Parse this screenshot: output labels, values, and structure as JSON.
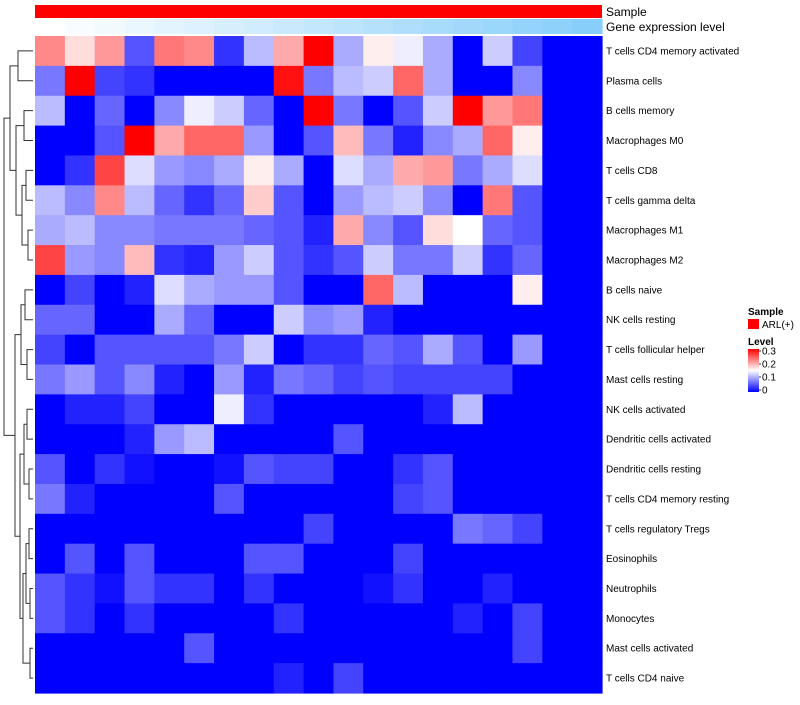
{
  "chart_data": {
    "type": "heatmap",
    "title": "",
    "annotation_rows": [
      {
        "name": "Sample",
        "kind": "categorical",
        "colors": [
          "#ff0000"
        ]
      },
      {
        "name": "Gene expression level",
        "kind": "gradient",
        "colors": [
          "#ffffff",
          "#87cefa"
        ]
      }
    ],
    "rows": [
      "T cells CD4 memory activated",
      "Plasma cells",
      "B cells memory",
      "Macrophages M0",
      "T cells CD8",
      "T cells gamma delta",
      "Macrophages M1",
      "Macrophages M2",
      "B cells naive",
      "NK cells resting",
      "T cells follicular helper",
      "Mast cells resting",
      "NK cells activated",
      "Dendritic cells activated",
      "Dendritic cells resting",
      "T cells CD4 memory resting",
      "T cells regulatory  Tregs",
      "Eosinophils",
      "Neutrophils",
      "Monocytes",
      "Mast cells activated",
      "T cells CD4 naive"
    ],
    "n_columns": 19,
    "values": [
      [
        0.22,
        0.17,
        0.21,
        0.05,
        0.23,
        0.22,
        0.03,
        0.11,
        0.2,
        0.3,
        0.1,
        0.16,
        0.14,
        0.1,
        0.0,
        0.12,
        0.04,
        0.0,
        0.0
      ],
      [
        0.07,
        0.3,
        0.04,
        0.03,
        0.0,
        0.0,
        0.0,
        0.0,
        0.29,
        0.07,
        0.11,
        0.12,
        0.24,
        0.1,
        0.0,
        0.0,
        0.08,
        0.0,
        0.0
      ],
      [
        0.11,
        0.0,
        0.06,
        0.0,
        0.08,
        0.14,
        0.12,
        0.06,
        0.0,
        0.3,
        0.07,
        0.0,
        0.05,
        0.12,
        0.3,
        0.21,
        0.23,
        0.0,
        0.0
      ],
      [
        0.0,
        0.0,
        0.05,
        0.3,
        0.2,
        0.24,
        0.24,
        0.09,
        0.0,
        0.05,
        0.19,
        0.07,
        0.02,
        0.08,
        0.1,
        0.24,
        0.16,
        0.0,
        0.0
      ],
      [
        0.0,
        0.03,
        0.26,
        0.13,
        0.09,
        0.08,
        0.1,
        0.16,
        0.1,
        0.0,
        0.13,
        0.1,
        0.2,
        0.21,
        0.07,
        0.1,
        0.13,
        0.0,
        0.0
      ],
      [
        0.11,
        0.08,
        0.22,
        0.11,
        0.06,
        0.03,
        0.06,
        0.18,
        0.05,
        0.0,
        0.09,
        0.11,
        0.12,
        0.08,
        0.0,
        0.23,
        0.05,
        0.0,
        0.0
      ],
      [
        0.1,
        0.11,
        0.08,
        0.08,
        0.07,
        0.07,
        0.07,
        0.06,
        0.05,
        0.02,
        0.2,
        0.08,
        0.05,
        0.17,
        0.15,
        0.06,
        0.05,
        0.0,
        0.0
      ],
      [
        0.26,
        0.09,
        0.08,
        0.19,
        0.03,
        0.02,
        0.09,
        0.12,
        0.05,
        0.03,
        0.05,
        0.12,
        0.07,
        0.07,
        0.12,
        0.03,
        0.06,
        0.0,
        0.0
      ],
      [
        0.0,
        0.04,
        0.0,
        0.02,
        0.13,
        0.1,
        0.09,
        0.09,
        0.05,
        0.0,
        0.0,
        0.24,
        0.11,
        0.0,
        0.0,
        0.0,
        0.16,
        0.0,
        0.0
      ],
      [
        0.06,
        0.06,
        0.0,
        0.0,
        0.1,
        0.06,
        0.0,
        0.0,
        0.12,
        0.08,
        0.09,
        0.02,
        0.0,
        0.0,
        0.0,
        0.0,
        0.0,
        0.0,
        0.0
      ],
      [
        0.04,
        0.0,
        0.05,
        0.05,
        0.05,
        0.05,
        0.07,
        0.12,
        0.0,
        0.03,
        0.03,
        0.06,
        0.05,
        0.1,
        0.05,
        0.0,
        0.09,
        0.0,
        0.0
      ],
      [
        0.07,
        0.09,
        0.05,
        0.08,
        0.02,
        0.0,
        0.09,
        0.02,
        0.07,
        0.06,
        0.04,
        0.05,
        0.04,
        0.04,
        0.04,
        0.04,
        0.0,
        0.0,
        0.0
      ],
      [
        0.0,
        0.02,
        0.02,
        0.04,
        0.0,
        0.0,
        0.14,
        0.03,
        0.0,
        0.0,
        0.0,
        0.0,
        0.0,
        0.02,
        0.11,
        0.0,
        0.0,
        0.0,
        0.0
      ],
      [
        0.0,
        0.0,
        0.0,
        0.02,
        0.09,
        0.11,
        0.0,
        0.0,
        0.0,
        0.0,
        0.05,
        0.0,
        0.0,
        0.0,
        0.0,
        0.0,
        0.0,
        0.0,
        0.0
      ],
      [
        0.05,
        0.0,
        0.03,
        0.01,
        0.0,
        0.0,
        0.01,
        0.05,
        0.04,
        0.04,
        0.0,
        0.0,
        0.03,
        0.05,
        0.0,
        0.0,
        0.0,
        0.0,
        0.0
      ],
      [
        0.07,
        0.02,
        0.0,
        0.0,
        0.0,
        0.0,
        0.05,
        0.0,
        0.0,
        0.0,
        0.0,
        0.0,
        0.04,
        0.05,
        0.0,
        0.0,
        0.0,
        0.0,
        0.0
      ],
      [
        0.0,
        0.0,
        0.0,
        0.0,
        0.0,
        0.0,
        0.0,
        0.0,
        0.0,
        0.04,
        0.0,
        0.0,
        0.0,
        0.0,
        0.07,
        0.06,
        0.04,
        0.0,
        0.0
      ],
      [
        0.0,
        0.05,
        0.0,
        0.05,
        0.0,
        0.0,
        0.0,
        0.05,
        0.05,
        0.0,
        0.0,
        0.0,
        0.04,
        0.0,
        0.0,
        0.0,
        0.0,
        0.0,
        0.0
      ],
      [
        0.05,
        0.03,
        0.01,
        0.05,
        0.03,
        0.03,
        0.0,
        0.03,
        0.0,
        0.0,
        0.0,
        0.01,
        0.03,
        0.0,
        0.0,
        0.02,
        0.0,
        0.0,
        0.0
      ],
      [
        0.05,
        0.03,
        0.0,
        0.03,
        0.0,
        0.0,
        0.0,
        0.0,
        0.03,
        0.0,
        0.0,
        0.0,
        0.0,
        0.0,
        0.02,
        0.0,
        0.04,
        0.0,
        0.0
      ],
      [
        0.0,
        0.0,
        0.0,
        0.0,
        0.0,
        0.05,
        0.0,
        0.0,
        0.0,
        0.0,
        0.0,
        0.0,
        0.0,
        0.0,
        0.0,
        0.0,
        0.04,
        0.0,
        0.0
      ],
      [
        0.0,
        0.0,
        0.0,
        0.0,
        0.0,
        0.0,
        0.0,
        0.0,
        0.02,
        0.0,
        0.04,
        0.0,
        0.0,
        0.0,
        0.0,
        0.0,
        0.0,
        0.0,
        0.0
      ]
    ],
    "color_scale": {
      "min": 0,
      "max": 0.3,
      "colors": [
        "#0000ff",
        "#ffffff",
        "#ff0000"
      ]
    },
    "legend": {
      "sample_title": "Sample",
      "sample_items": [
        {
          "label": "ARL(+)",
          "color": "#ff0000"
        }
      ],
      "level_title": "Level",
      "level_ticks": [
        "0.3",
        "0.2",
        "0.1",
        "0"
      ]
    },
    "dendrogram": "row clustering, left side"
  }
}
